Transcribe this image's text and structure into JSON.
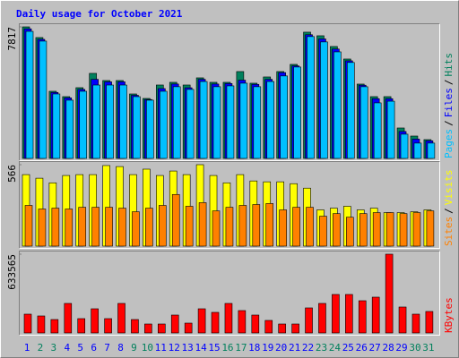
{
  "title": "Daily usage for October 2021",
  "chart_data": [
    {
      "type": "bar",
      "ylim": [
        0,
        7817
      ],
      "yticks": [
        7817
      ],
      "legend_separator": "/",
      "series": [
        {
          "name": "Hits",
          "color": "#00805c",
          "values": [
            7817,
            7182,
            3990,
            3671,
            4203,
            5054,
            4628,
            4628,
            3830,
            3564,
            4362,
            4522,
            4362,
            4788,
            4522,
            4522,
            5161,
            4469,
            4841,
            5161,
            5587,
            7501,
            7288,
            6650,
            5905,
            4416,
            3671,
            3671,
            1809,
            1330,
            1117
          ]
        },
        {
          "name": "Files",
          "color": "#0000ff",
          "values": [
            7700,
            7075,
            3920,
            3600,
            4100,
            4700,
            4550,
            4550,
            3750,
            3500,
            4150,
            4420,
            4200,
            4700,
            4420,
            4450,
            4650,
            4400,
            4700,
            5100,
            5500,
            7350,
            7100,
            6500,
            5800,
            4350,
            3550,
            3550,
            1600,
            1150,
            1050
          ]
        },
        {
          "name": "Pages",
          "color": "#00c0ff",
          "values": [
            7550,
            6970,
            3830,
            3460,
            3990,
            4360,
            4360,
            4360,
            3670,
            3460,
            3990,
            4260,
            4100,
            4570,
            4260,
            4310,
            4470,
            4260,
            4570,
            4900,
            5430,
            7240,
            6920,
            6330,
            5700,
            4260,
            3300,
            3400,
            1440,
            910,
            910
          ]
        }
      ]
    },
    {
      "type": "bar",
      "ylim": [
        0,
        566
      ],
      "yticks": [
        566
      ],
      "legend_separator": "/",
      "series": [
        {
          "name": "Visits",
          "color": "#ffff00",
          "values": [
            497,
            472,
            440,
            491,
            497,
            497,
            560,
            553,
            497,
            535,
            491,
            522,
            497,
            566,
            491,
            440,
            497,
            453,
            447,
            447,
            434,
            403,
            252,
            264,
            277,
            252,
            264,
            233,
            233,
            239,
            252
          ]
        },
        {
          "name": "Sites",
          "color": "#ff8000",
          "values": [
            283,
            258,
            264,
            258,
            270,
            270,
            270,
            264,
            239,
            264,
            283,
            359,
            277,
            302,
            245,
            270,
            283,
            289,
            296,
            252,
            270,
            270,
            208,
            226,
            201,
            226,
            233,
            233,
            226,
            233,
            245
          ]
        }
      ]
    },
    {
      "type": "bar",
      "ylim": [
        0,
        633565
      ],
      "yticks": [
        633565
      ],
      "categories": [
        "1",
        "2",
        "3",
        "4",
        "5",
        "6",
        "7",
        "8",
        "9",
        "10",
        "11",
        "12",
        "13",
        "14",
        "15",
        "16",
        "17",
        "18",
        "19",
        "20",
        "21",
        "22",
        "23",
        "24",
        "25",
        "26",
        "27",
        "28",
        "29",
        "30",
        "31"
      ],
      "category_colors": [
        "#0000ff",
        "#00805c",
        "#00805c",
        "#0000ff",
        "#0000ff",
        "#0000ff",
        "#0000ff",
        "#0000ff",
        "#00805c",
        "#00805c",
        "#0000ff",
        "#0000ff",
        "#0000ff",
        "#0000ff",
        "#0000ff",
        "#00805c",
        "#00805c",
        "#0000ff",
        "#0000ff",
        "#0000ff",
        "#0000ff",
        "#0000ff",
        "#00805c",
        "#00805c",
        "#0000ff",
        "#0000ff",
        "#0000ff",
        "#0000ff",
        "#0000ff",
        "#00805c",
        "#00805c"
      ],
      "series": [
        {
          "name": "KBytes",
          "color": "#ff0000",
          "values": [
            151200,
            136800,
            108000,
            237600,
            115200,
            194400,
            115200,
            237600,
            108000,
            72000,
            72000,
            144000,
            79200,
            194400,
            165600,
            237600,
            180000,
            144000,
            100800,
            72000,
            72000,
            201600,
            237600,
            309600,
            309600,
            259200,
            288000,
            633565,
            208800,
            151200,
            172800
          ]
        }
      ]
    }
  ]
}
